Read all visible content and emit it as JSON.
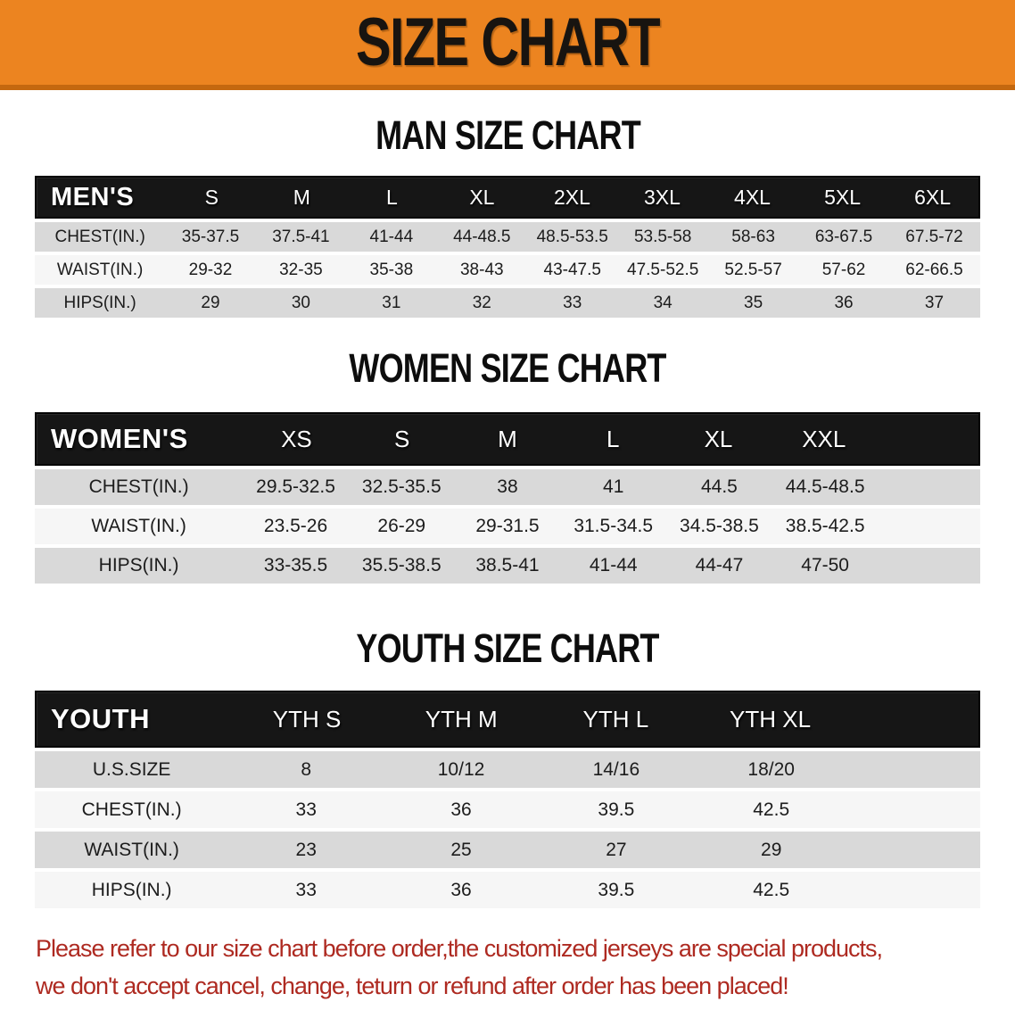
{
  "banner": {
    "title": "SIZE CHART",
    "bg_color": "#EC8420",
    "border_color": "#C4680F",
    "text_color": "#181410"
  },
  "colors": {
    "header_row_bg": "#161616",
    "row_gray": "#D9D9D9",
    "row_white": "#F6F6F6",
    "disclaimer_red": "#AE2A21"
  },
  "sections": [
    {
      "title": "MAN SIZE CHART",
      "header_label": "MEN'S",
      "columns": [
        "S",
        "M",
        "L",
        "XL",
        "2XL",
        "3XL",
        "4XL",
        "5XL",
        "6XL"
      ],
      "rows": [
        {
          "label": "CHEST(IN.)",
          "values": [
            "35-37.5",
            "37.5-41",
            "41-44",
            "44-48.5",
            "48.5-53.5",
            "53.5-58",
            "58-63",
            "63-67.5",
            "67.5-72"
          ]
        },
        {
          "label": "WAIST(IN.)",
          "values": [
            "29-32",
            "32-35",
            "35-38",
            "38-43",
            "43-47.5",
            "47.5-52.5",
            "52.5-57",
            "57-62",
            "62-66.5"
          ]
        },
        {
          "label": "HIPS(IN.)",
          "values": [
            "29",
            "30",
            "31",
            "32",
            "33",
            "34",
            "35",
            "36",
            "37"
          ]
        }
      ]
    },
    {
      "title": "WOMEN SIZE CHART",
      "header_label": "WOMEN'S",
      "columns": [
        "XS",
        "S",
        "M",
        "L",
        "XL",
        "XXL"
      ],
      "rows": [
        {
          "label": "CHEST(IN.)",
          "values": [
            "29.5-32.5",
            "32.5-35.5",
            "38",
            "41",
            "44.5",
            "44.5-48.5"
          ]
        },
        {
          "label": "WAIST(IN.)",
          "values": [
            "23.5-26",
            "26-29",
            "29-31.5",
            "31.5-34.5",
            "34.5-38.5",
            "38.5-42.5"
          ]
        },
        {
          "label": "HIPS(IN.)",
          "values": [
            "33-35.5",
            "35.5-38.5",
            "38.5-41",
            "41-44",
            "44-47",
            "47-50"
          ]
        }
      ]
    },
    {
      "title": "YOUTH SIZE CHART",
      "header_label": "YOUTH",
      "columns": [
        "YTH S",
        "YTH M",
        "YTH L",
        "YTH XL"
      ],
      "rows": [
        {
          "label": "U.S.SIZE",
          "values": [
            "8",
            "10/12",
            "14/16",
            "18/20"
          ]
        },
        {
          "label": "CHEST(IN.)",
          "values": [
            "33",
            "36",
            "39.5",
            "42.5"
          ]
        },
        {
          "label": "WAIST(IN.)",
          "values": [
            "23",
            "25",
            "27",
            "29"
          ]
        },
        {
          "label": "HIPS(IN.)",
          "values": [
            "33",
            "36",
            "39.5",
            "42.5"
          ]
        }
      ]
    }
  ],
  "disclaimer": {
    "line1": "Please refer to our size chart before order,the customized jerseys are special products,",
    "line2": "we don't accept cancel, change, teturn or refund after order has been placed!"
  }
}
